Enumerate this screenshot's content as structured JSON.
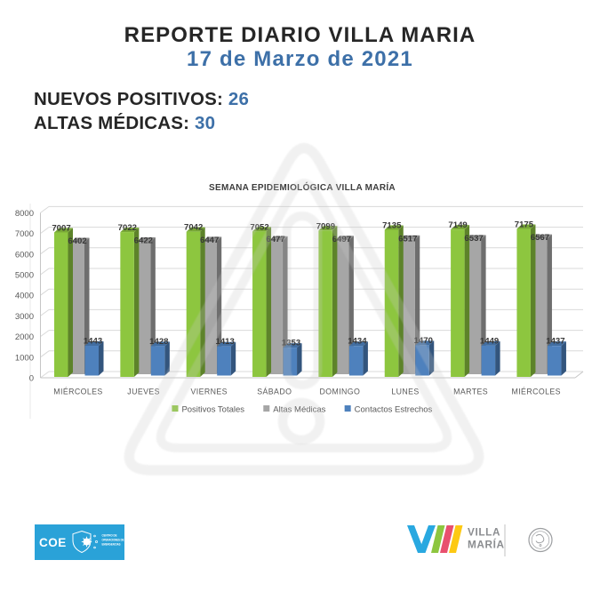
{
  "header": {
    "title": "REPORTE DIARIO VILLA MARIA",
    "date": "17 de Marzo de 2021"
  },
  "stats": [
    {
      "label": "NUEVOS POSITIVOS:",
      "value": "26"
    },
    {
      "label": "ALTAS MÉDICAS:",
      "value": "30"
    }
  ],
  "colors": {
    "accent_blue": "#3d70a8",
    "heading_dark": "#262626",
    "watermark_gray": "#c8c8c8"
  },
  "chart_data": {
    "type": "bar",
    "style": "3d-clustered-column",
    "title": "SEMANA EPIDEMIOLÓGICA VILLA MARÍA",
    "categories": [
      "MIÉRCOLES",
      "JUEVES",
      "VIERNES",
      "SÁBADO",
      "DOMINGO",
      "LUNES",
      "MARTES",
      "MIÉRCOLES"
    ],
    "series": [
      {
        "name": "Positivos Totales",
        "color": "#8dc63f",
        "values": [
          7007,
          7022,
          7042,
          7052,
          7099,
          7135,
          7149,
          7175
        ]
      },
      {
        "name": "Altas Médicas",
        "color": "#a6a6a6",
        "values": [
          6402,
          6422,
          6447,
          6477,
          6497,
          6517,
          6537,
          6567
        ]
      },
      {
        "name": "Contactos Estrechos",
        "color": "#4e81bd",
        "values": [
          1443,
          1428,
          1413,
          1353,
          1434,
          1470,
          1449,
          1437
        ]
      }
    ],
    "ylim": [
      0,
      8000
    ],
    "ytick_interval": 1000,
    "gridlines": true,
    "legend_position": "bottom"
  },
  "footer": {
    "coe_logo": {
      "abbr": "COE",
      "lines": [
        "CENTRO DE",
        "OPERACIONES DE",
        "EMERGENCIAS"
      ],
      "bg_color": "#2aa2d8"
    },
    "villa_maria_logo": {
      "line1": "VILLA",
      "line2": "MARÍA",
      "mark_colors": [
        "#29a8e0",
        "#8dc63f",
        "#e8506e",
        "#fdc913"
      ],
      "text_color": "#8b8d90"
    }
  }
}
